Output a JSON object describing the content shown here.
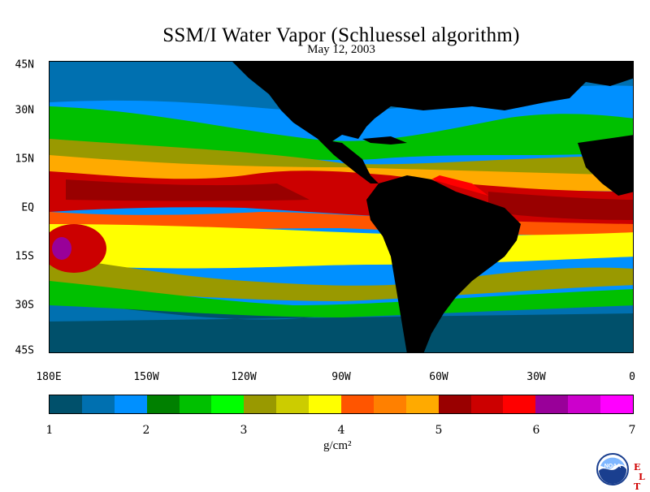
{
  "title": "SSM/I Water Vapor (Schluessel algorithm)",
  "date": "May 12, 2003",
  "lat_labels": [
    "45N",
    "30N",
    "15N",
    "EQ",
    "15S",
    "30S",
    "45S"
  ],
  "lon_labels": [
    "180E",
    "150W",
    "120W",
    "90W",
    "60W",
    "30W",
    "0"
  ],
  "colorbar": {
    "ticks": [
      "1",
      "2",
      "3",
      "4",
      "5",
      "6",
      "7"
    ],
    "units": "g/cm²",
    "colors": [
      "#00506b",
      "#0070b0",
      "#0090ff",
      "#008000",
      "#00c000",
      "#00ff00",
      "#999900",
      "#cccc00",
      "#ffff00",
      "#ff5500",
      "#ff8000",
      "#ffaa00",
      "#990000",
      "#cc0000",
      "#ff0000",
      "#990099",
      "#cc00cc",
      "#ff00ff"
    ]
  },
  "logo": {
    "icon": "noaa-logo-icon",
    "text": "NOAA"
  },
  "etl_text": [
    "E",
    "T",
    "L"
  ]
}
